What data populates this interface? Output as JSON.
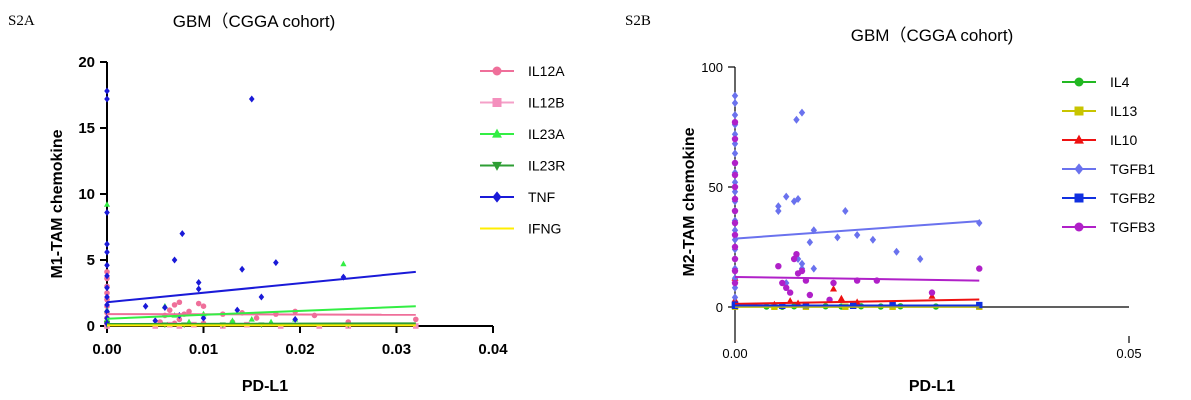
{
  "chart_data": [
    {
      "panel_label": "S2A",
      "type": "scatter",
      "title": "GBM（CGGA cohort)",
      "xlabel": "PD-L1",
      "ylabel": "M1-TAM chemokine",
      "xlim": [
        0,
        0.04
      ],
      "ylim": [
        0,
        20
      ],
      "x_ticks": [
        0,
        0.01,
        0.02,
        0.03,
        0.04
      ],
      "x_tick_labels": [
        "0.00",
        "0.01",
        "0.02",
        "0.03",
        "0.04"
      ],
      "y_ticks": [
        0,
        5,
        10,
        15,
        20
      ],
      "y_tick_labels": [
        "0",
        "5",
        "10",
        "15",
        "20"
      ],
      "legend_position": "right",
      "grid": false,
      "series": [
        {
          "name": "IL12A",
          "color": "#ef6f9a",
          "marker": "circle",
          "line_color": "#ef6f9a",
          "fit": [
            [
              0,
              0.9
            ],
            [
              0.032,
              0.85
            ]
          ],
          "points": [
            [
              0,
              0.3
            ],
            [
              0,
              0.6
            ],
            [
              0,
              1.0
            ],
            [
              0,
              1.5
            ],
            [
              0,
              2.0
            ],
            [
              0,
              2.5
            ],
            [
              0,
              3.0
            ],
            [
              0,
              3.6
            ],
            [
              0,
              4.1
            ],
            [
              0.0055,
              0.3
            ],
            [
              0.006,
              0.8
            ],
            [
              0.0065,
              1.2
            ],
            [
              0.007,
              0.2
            ],
            [
              0.007,
              1.6
            ],
            [
              0.0075,
              1.8
            ],
            [
              0.0075,
              0.5
            ],
            [
              0.008,
              0.9
            ],
            [
              0.0085,
              1.1
            ],
            [
              0.0095,
              1.7
            ],
            [
              0.01,
              1.5
            ],
            [
              0.01,
              0.2
            ],
            [
              0.012,
              0.9
            ],
            [
              0.013,
              0.3
            ],
            [
              0.014,
              1.0
            ],
            [
              0.0155,
              0.6
            ],
            [
              0.0175,
              0.9
            ],
            [
              0.0195,
              1.1
            ],
            [
              0.0215,
              0.8
            ],
            [
              0.025,
              0.3
            ],
            [
              0.032,
              0.5
            ]
          ]
        },
        {
          "name": "IL12B",
          "color": "#f48fbd",
          "marker": "square",
          "line_color": "#f4a0c8",
          "fit": [
            [
              0,
              0.1
            ],
            [
              0.032,
              0.1
            ]
          ],
          "points": [
            [
              0,
              0
            ],
            [
              0,
              0.1
            ],
            [
              0,
              0.2
            ],
            [
              0.005,
              0
            ],
            [
              0.0065,
              0.1
            ],
            [
              0.0075,
              0
            ],
            [
              0.009,
              0.1
            ],
            [
              0.012,
              0
            ],
            [
              0.0145,
              0.1
            ],
            [
              0.018,
              0
            ],
            [
              0.022,
              0
            ],
            [
              0.025,
              0
            ],
            [
              0.032,
              0
            ]
          ]
        },
        {
          "name": "IL23A",
          "color": "#33ee44",
          "marker": "triangle",
          "line_color": "#33ee44",
          "fit": [
            [
              0,
              0.55
            ],
            [
              0.032,
              1.5
            ]
          ],
          "points": [
            [
              0,
              9.2
            ],
            [
              0,
              0.5
            ],
            [
              0,
              1.2
            ],
            [
              0.006,
              1.5
            ],
            [
              0.007,
              0.8
            ],
            [
              0.0085,
              0.3
            ],
            [
              0.01,
              0.9
            ],
            [
              0.013,
              0.4
            ],
            [
              0.015,
              0.5
            ],
            [
              0.017,
              0.3
            ],
            [
              0.0195,
              0.5
            ],
            [
              0.0245,
              4.7
            ]
          ]
        },
        {
          "name": "IL23R",
          "color": "#2e9e34",
          "marker": "triangle-down",
          "line_color": "#2e9e34",
          "fit": [
            [
              0,
              0.15
            ],
            [
              0.032,
              0.2
            ]
          ],
          "points": [
            [
              0,
              0.1
            ],
            [
              0,
              0.2
            ],
            [
              0.006,
              0.1
            ],
            [
              0.008,
              0.1
            ],
            [
              0.012,
              0.1
            ],
            [
              0.016,
              0.1
            ],
            [
              0.025,
              0.1
            ]
          ]
        },
        {
          "name": "TNF",
          "color": "#1a1ad8",
          "marker": "diamond",
          "line_color": "#1a1ad8",
          "fit": [
            [
              0,
              1.8
            ],
            [
              0.032,
              4.1
            ]
          ],
          "points": [
            [
              0,
              17.8
            ],
            [
              0,
              17.2
            ],
            [
              0,
              8.6
            ],
            [
              0,
              6.2
            ],
            [
              0,
              5.6
            ],
            [
              0,
              4.6
            ],
            [
              0,
              3.8
            ],
            [
              0,
              2.9
            ],
            [
              0,
              2.2
            ],
            [
              0,
              1.6
            ],
            [
              0,
              1.1
            ],
            [
              0,
              0.6
            ],
            [
              0,
              0.2
            ],
            [
              0.004,
              1.5
            ],
            [
              0.005,
              0.4
            ],
            [
              0.006,
              1.4
            ],
            [
              0.007,
              5.0
            ],
            [
              0.0075,
              0.8
            ],
            [
              0.0078,
              7.0
            ],
            [
              0.0095,
              3.3
            ],
            [
              0.0095,
              2.8
            ],
            [
              0.01,
              0.6
            ],
            [
              0.0135,
              1.2
            ],
            [
              0.014,
              4.3
            ],
            [
              0.015,
              17.2
            ],
            [
              0.016,
              2.2
            ],
            [
              0.0175,
              4.8
            ],
            [
              0.0195,
              0.5
            ],
            [
              0.0245,
              3.7
            ]
          ]
        },
        {
          "name": "IFNG",
          "color": "#ffee00",
          "marker": "none",
          "line_color": "#ffee00",
          "fit": [
            [
              0,
              0.05
            ],
            [
              0.032,
              0.05
            ]
          ],
          "points": []
        }
      ]
    },
    {
      "panel_label": "S2B",
      "type": "scatter",
      "title": "GBM（CGGA cohort)",
      "xlabel": "PD-L1",
      "ylabel": "M2-TAM chemokine",
      "xlim": [
        0,
        0.05
      ],
      "ylim": [
        0,
        100
      ],
      "x_ticks": [
        0,
        0.05
      ],
      "x_tick_labels": [
        "0.00",
        "0.05"
      ],
      "y_ticks": [
        0,
        50,
        100
      ],
      "y_tick_labels": [
        "0",
        "50",
        "100"
      ],
      "legend_position": "right",
      "grid": false,
      "series": [
        {
          "name": "IL4",
          "color": "#22b822",
          "marker": "circle",
          "line_color": "#22b822",
          "fit": [
            [
              0,
              0.2
            ],
            [
              0.031,
              0.5
            ]
          ],
          "points": [
            [
              0,
              0.2
            ],
            [
              0,
              0.5
            ],
            [
              0.004,
              0.2
            ],
            [
              0.006,
              0.1
            ],
            [
              0.0075,
              0.3
            ],
            [
              0.009,
              0.2
            ],
            [
              0.0115,
              0.3
            ],
            [
              0.0135,
              0.2
            ],
            [
              0.016,
              0.3
            ],
            [
              0.0185,
              0.2
            ],
            [
              0.021,
              0.3
            ],
            [
              0.0255,
              0.2
            ],
            [
              0.031,
              0.3
            ]
          ]
        },
        {
          "name": "IL13",
          "color": "#c8c400",
          "marker": "square",
          "line_color": "#c8c400",
          "fit": [
            [
              0,
              0.1
            ],
            [
              0.031,
              0.1
            ]
          ],
          "points": [
            [
              0,
              0.1
            ],
            [
              0.005,
              0.1
            ],
            [
              0.009,
              0.1
            ],
            [
              0.014,
              0.1
            ],
            [
              0.02,
              0.1
            ],
            [
              0.031,
              0.1
            ]
          ]
        },
        {
          "name": "IL10",
          "color": "#ee1111",
          "marker": "triangle",
          "line_color": "#ee1111",
          "fit": [
            [
              0,
              1.3
            ],
            [
              0.031,
              3.1
            ]
          ],
          "points": [
            [
              0,
              12
            ],
            [
              0,
              3
            ],
            [
              0.005,
              1
            ],
            [
              0.007,
              2.5
            ],
            [
              0.008,
              1.5
            ],
            [
              0.0125,
              7.5
            ],
            [
              0.0135,
              3.5
            ],
            [
              0.0155,
              2.0
            ],
            [
              0.025,
              4.5
            ]
          ]
        },
        {
          "name": "TGFB1",
          "color": "#6a72ee",
          "marker": "diamond",
          "line_color": "#6a72ee",
          "fit": [
            [
              0,
              28.5
            ],
            [
              0.031,
              35.8
            ]
          ],
          "points": [
            [
              0,
              88
            ],
            [
              0,
              85
            ],
            [
              0,
              80
            ],
            [
              0,
              76
            ],
            [
              0,
              72
            ],
            [
              0,
              68
            ],
            [
              0,
              64
            ],
            [
              0,
              60
            ],
            [
              0,
              56
            ],
            [
              0,
              52
            ],
            [
              0,
              48
            ],
            [
              0,
              44
            ],
            [
              0,
              40
            ],
            [
              0,
              36
            ],
            [
              0,
              32
            ],
            [
              0,
              28
            ],
            [
              0,
              24
            ],
            [
              0,
              20
            ],
            [
              0,
              16
            ],
            [
              0,
              12
            ],
            [
              0,
              8
            ],
            [
              0,
              4
            ],
            [
              0.0055,
              42
            ],
            [
              0.0055,
              40
            ],
            [
              0.0065,
              46
            ],
            [
              0.0075,
              44
            ],
            [
              0.0078,
              78
            ],
            [
              0.0085,
              81
            ],
            [
              0.008,
              45
            ],
            [
              0.008,
              20
            ],
            [
              0.0085,
              18
            ],
            [
              0.0095,
              27
            ],
            [
              0.01,
              32
            ],
            [
              0.0085,
              16
            ],
            [
              0.014,
              40
            ],
            [
              0.013,
              29
            ],
            [
              0.0155,
              30
            ],
            [
              0.0175,
              28
            ],
            [
              0.0205,
              23
            ],
            [
              0.0235,
              20
            ],
            [
              0.031,
              35
            ],
            [
              0.0065,
              10
            ],
            [
              0.01,
              16
            ]
          ]
        },
        {
          "name": "TGFB2",
          "color": "#1030e0",
          "marker": "square",
          "line_color": "#1030e0",
          "fit": [
            [
              0,
              0.6
            ],
            [
              0.031,
              0.6
            ]
          ],
          "points": [
            [
              0,
              0.5
            ],
            [
              0,
              1.0
            ],
            [
              0.006,
              0.5
            ],
            [
              0.009,
              0.8
            ],
            [
              0.015,
              0.5
            ],
            [
              0.02,
              1.0
            ],
            [
              0.031,
              0.8
            ]
          ]
        },
        {
          "name": "TGFB3",
          "color": "#b020c8",
          "marker": "circle",
          "line_color": "#b020c8",
          "fit": [
            [
              0,
              12.5
            ],
            [
              0.031,
              11.0
            ]
          ],
          "points": [
            [
              0,
              77
            ],
            [
              0,
              70
            ],
            [
              0,
              60
            ],
            [
              0,
              55
            ],
            [
              0,
              50
            ],
            [
              0,
              45
            ],
            [
              0,
              40
            ],
            [
              0,
              35
            ],
            [
              0,
              30
            ],
            [
              0,
              25
            ],
            [
              0,
              20
            ],
            [
              0,
              15
            ],
            [
              0,
              10
            ],
            [
              0.0055,
              17
            ],
            [
              0.006,
              10
            ],
            [
              0.0065,
              8
            ],
            [
              0.007,
              6
            ],
            [
              0.0075,
              20
            ],
            [
              0.0078,
              22
            ],
            [
              0.008,
              14
            ],
            [
              0.0085,
              15
            ],
            [
              0.009,
              11
            ],
            [
              0.0095,
              5
            ],
            [
              0.0125,
              10
            ],
            [
              0.0155,
              11
            ],
            [
              0.018,
              11
            ],
            [
              0.025,
              6
            ],
            [
              0.031,
              16
            ],
            [
              0.012,
              3
            ]
          ]
        }
      ]
    }
  ]
}
